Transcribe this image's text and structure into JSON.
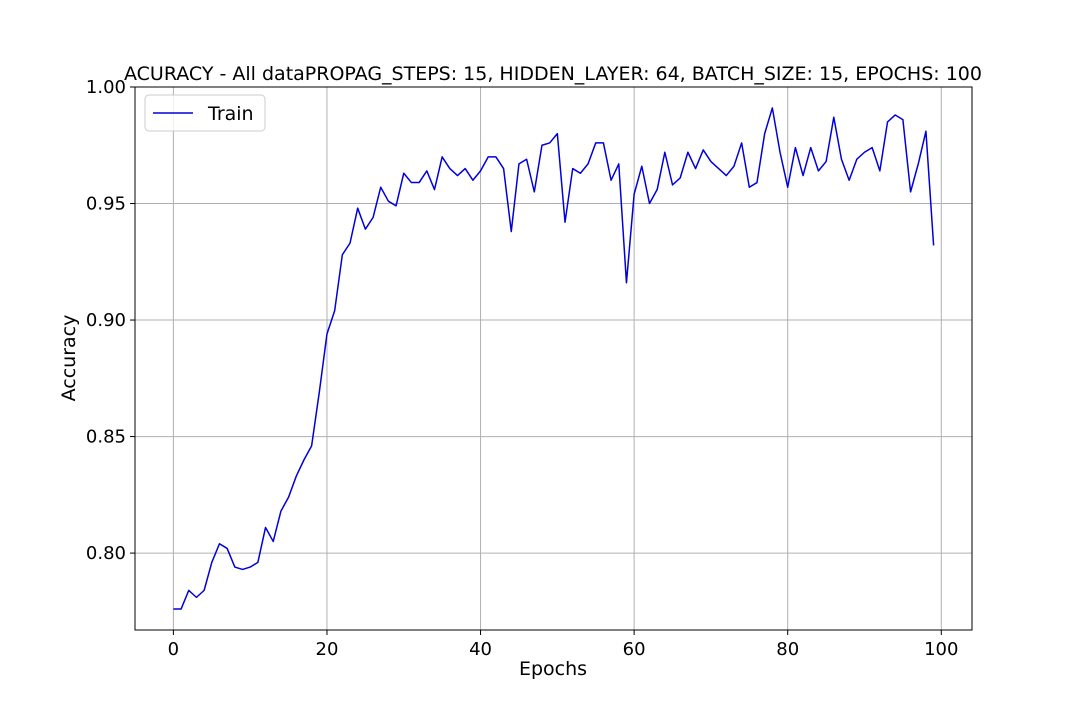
{
  "chart_data": {
    "type": "line",
    "title": "ACURACY - All dataPROPAG_STEPS: 15, HIDDEN_LAYER: 64, BATCH_SIZE: 15, EPOCHS: 100",
    "xlabel": "Epochs",
    "ylabel": "Accuracy",
    "xlim": [
      -5,
      104
    ],
    "ylim": [
      0.767,
      1.0
    ],
    "xticks": [
      0,
      20,
      40,
      60,
      80,
      100
    ],
    "yticks": [
      0.8,
      0.85,
      0.9,
      0.95,
      1.0
    ],
    "grid": true,
    "legend": {
      "position": "top-left",
      "entries": [
        "Train"
      ]
    },
    "series": [
      {
        "name": "Train",
        "color": "#0000dd",
        "x": [
          0,
          1,
          2,
          3,
          4,
          5,
          6,
          7,
          8,
          9,
          10,
          11,
          12,
          13,
          14,
          15,
          16,
          17,
          18,
          19,
          20,
          21,
          22,
          23,
          24,
          25,
          26,
          27,
          28,
          29,
          30,
          31,
          32,
          33,
          34,
          35,
          36,
          37,
          38,
          39,
          40,
          41,
          42,
          43,
          44,
          45,
          46,
          47,
          48,
          49,
          50,
          51,
          52,
          53,
          54,
          55,
          56,
          57,
          58,
          59,
          60,
          61,
          62,
          63,
          64,
          65,
          66,
          67,
          68,
          69,
          70,
          71,
          72,
          73,
          74,
          75,
          76,
          77,
          78,
          79,
          80,
          81,
          82,
          83,
          84,
          85,
          86,
          87,
          88,
          89,
          90,
          91,
          92,
          93,
          94,
          95,
          96,
          97,
          98,
          99
        ],
        "values": [
          0.776,
          0.776,
          0.784,
          0.781,
          0.784,
          0.796,
          0.804,
          0.802,
          0.794,
          0.793,
          0.794,
          0.796,
          0.811,
          0.805,
          0.818,
          0.824,
          0.833,
          0.84,
          0.846,
          0.869,
          0.894,
          0.904,
          0.928,
          0.933,
          0.948,
          0.939,
          0.944,
          0.957,
          0.951,
          0.949,
          0.963,
          0.959,
          0.959,
          0.964,
          0.956,
          0.97,
          0.965,
          0.962,
          0.965,
          0.96,
          0.964,
          0.97,
          0.97,
          0.965,
          0.938,
          0.967,
          0.969,
          0.955,
          0.975,
          0.976,
          0.98,
          0.942,
          0.965,
          0.963,
          0.967,
          0.976,
          0.976,
          0.96,
          0.967,
          0.916,
          0.954,
          0.966,
          0.95,
          0.956,
          0.972,
          0.958,
          0.961,
          0.972,
          0.965,
          0.973,
          0.968,
          0.965,
          0.962,
          0.966,
          0.976,
          0.957,
          0.959,
          0.98,
          0.991,
          0.972,
          0.957,
          0.974,
          0.962,
          0.974,
          0.964,
          0.968,
          0.987,
          0.969,
          0.96,
          0.969,
          0.972,
          0.974,
          0.964,
          0.985,
          0.988,
          0.986,
          0.955,
          0.967,
          0.981,
          0.932
        ]
      }
    ]
  }
}
